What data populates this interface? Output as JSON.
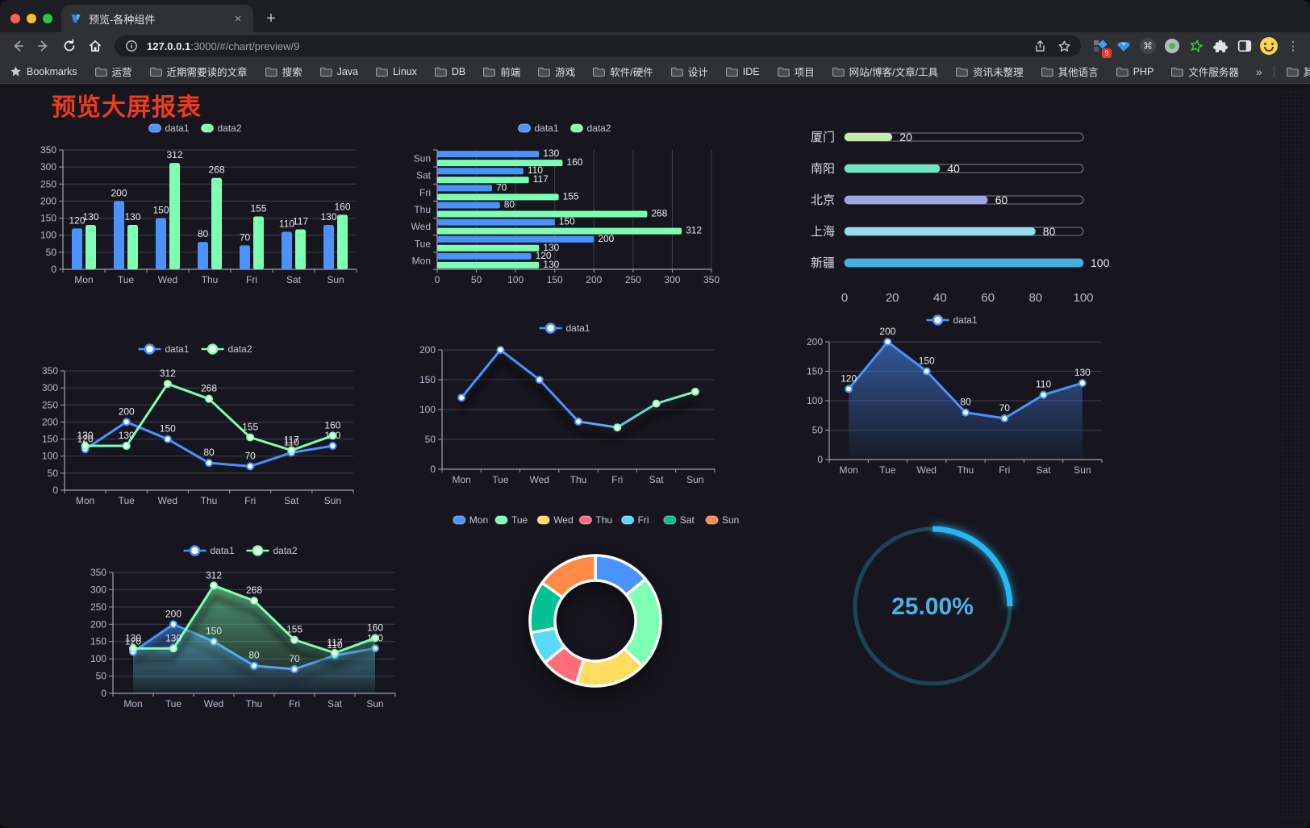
{
  "browser": {
    "traffic_lights": {
      "close": "#ff5f57",
      "minimize": "#febc2e",
      "zoom": "#2ac840"
    },
    "tab": {
      "title": "预览-各种组件",
      "close_glyph": "×",
      "new_tab_glyph": "+"
    },
    "url": {
      "host": "127.0.0.1",
      "rest": ":3000/#/chart/preview/9"
    },
    "extensions": {
      "grid_badge": "9",
      "command_glyph": "⌘",
      "menu_glyph": "⋮"
    },
    "bookmarks": {
      "lead": "Bookmarks",
      "folders": [
        "运营",
        "近期需要读的文章",
        "搜索",
        "Java",
        "Linux",
        "DB",
        "前端",
        "游戏",
        "软件/硬件",
        "设计",
        "IDE",
        "项目",
        "网站/博客/文章/工具",
        "资讯未整理",
        "其他语言",
        "PHP",
        "文件服务器"
      ],
      "overflow_glyph": "»",
      "other": "其他书签"
    }
  },
  "page": {
    "title": "预览大屏报表"
  },
  "palette": {
    "blue": "#4992ff",
    "green": "#7cffb2",
    "yellow": "#fddd60",
    "red": "#ff6e76",
    "lightblue": "#58d9f9",
    "teal": "#05c091",
    "orange": "#ff8a45"
  },
  "chart_data": [
    {
      "type": "bar",
      "legend": "rect",
      "labels": true,
      "categories": [
        "Mon",
        "Tue",
        "Wed",
        "Thu",
        "Fri",
        "Sat",
        "Sun"
      ],
      "series": [
        {
          "name": "data1",
          "color": "#4992ff",
          "values": [
            120,
            200,
            150,
            80,
            70,
            110,
            130
          ]
        },
        {
          "name": "data2",
          "color": "#7cffb2",
          "values": [
            130,
            130,
            312,
            268,
            155,
            117,
            160
          ]
        }
      ],
      "ylim": [
        0,
        350
      ],
      "ystep": 50
    },
    {
      "type": "barh",
      "legend": "rect",
      "labels": true,
      "categories": [
        "Sun",
        "Sat",
        "Fri",
        "Thu",
        "Wed",
        "Tue",
        "Mon"
      ],
      "series": [
        {
          "name": "data1",
          "color": "#4992ff",
          "values": [
            130,
            110,
            70,
            80,
            150,
            200,
            120
          ]
        },
        {
          "name": "data2",
          "color": "#7cffb2",
          "values": [
            160,
            117,
            155,
            268,
            312,
            130,
            130
          ]
        }
      ],
      "xlim": [
        0,
        350
      ],
      "xstep": 50
    },
    {
      "type": "progress",
      "items": [
        {
          "label": "厦门",
          "value": 20,
          "color": "#c4ebad"
        },
        {
          "label": "南阳",
          "value": 40,
          "color": "#6be6c1"
        },
        {
          "label": "北京",
          "value": 60,
          "color": "#a0a7e6"
        },
        {
          "label": "上海",
          "value": 80,
          "color": "#96dee8"
        },
        {
          "label": "新疆",
          "value": 100,
          "color": "#3fb1e3"
        }
      ],
      "axis": [
        0,
        20,
        40,
        60,
        80,
        100
      ],
      "max": 100
    },
    {
      "type": "line",
      "legend": "line",
      "labels": true,
      "categories": [
        "Mon",
        "Tue",
        "Wed",
        "Thu",
        "Fri",
        "Sat",
        "Sun"
      ],
      "series": [
        {
          "name": "data1",
          "color": "#4992ff",
          "values": [
            120,
            200,
            150,
            80,
            70,
            110,
            130
          ]
        },
        {
          "name": "data2",
          "color": "#7cffb2",
          "values": [
            130,
            130,
            312,
            268,
            155,
            117,
            160
          ]
        }
      ],
      "ylim": [
        0,
        350
      ],
      "ystep": 50
    },
    {
      "type": "line",
      "legend": "line",
      "labels": false,
      "shadow": true,
      "categories": [
        "Mon",
        "Tue",
        "Wed",
        "Thu",
        "Fri",
        "Sat",
        "Sun"
      ],
      "series": [
        {
          "name": "data1",
          "color": "#4992ff",
          "color2": "#7cffb2",
          "values": [
            120,
            200,
            150,
            80,
            70,
            110,
            130
          ]
        }
      ],
      "ylim": [
        0,
        200
      ],
      "ystep": 50
    },
    {
      "type": "line",
      "legend": "line",
      "labels": true,
      "categories": [
        "Mon",
        "Tue",
        "Wed",
        "Thu",
        "Fri",
        "Sat",
        "Sun"
      ],
      "series": [
        {
          "name": "data1",
          "color": "#4992ff",
          "area": true,
          "values": [
            120,
            200,
            150,
            80,
            70,
            110,
            130
          ]
        }
      ],
      "ylim": [
        0,
        200
      ],
      "ystep": 50
    },
    {
      "type": "line",
      "legend": "line",
      "labels": true,
      "shadow": true,
      "categories": [
        "Mon",
        "Tue",
        "Wed",
        "Thu",
        "Fri",
        "Sat",
        "Sun"
      ],
      "series": [
        {
          "name": "data1",
          "color": "#4992ff",
          "area": true,
          "values": [
            120,
            200,
            150,
            80,
            70,
            110,
            130
          ]
        },
        {
          "name": "data2",
          "color": "#7cffb2",
          "area": true,
          "values": [
            130,
            130,
            312,
            268,
            155,
            117,
            160
          ]
        }
      ],
      "ylim": [
        0,
        350
      ],
      "ystep": 50
    },
    {
      "type": "donut",
      "items": [
        {
          "label": "Mon",
          "value": 120,
          "color": "#4992ff"
        },
        {
          "label": "Tue",
          "value": 200,
          "color": "#7cffb2"
        },
        {
          "label": "Wed",
          "value": 150,
          "color": "#fddd60"
        },
        {
          "label": "Thu",
          "value": 80,
          "color": "#ff6e76"
        },
        {
          "label": "Fri",
          "value": 70,
          "color": "#58d9f9"
        },
        {
          "label": "Sat",
          "value": 110,
          "color": "#05c091"
        },
        {
          "label": "Sun",
          "value": 130,
          "color": "#ff8a45"
        }
      ]
    },
    {
      "type": "gauge",
      "value": 25,
      "label": "25.00%",
      "color": "#27b6f2",
      "track_color": "#1d4554",
      "text_color": "#4fb0e8"
    }
  ]
}
